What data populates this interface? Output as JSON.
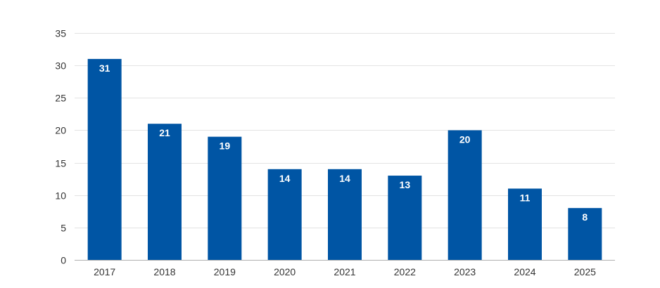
{
  "chart_data": {
    "type": "bar",
    "title": "",
    "xlabel": "",
    "ylabel": "",
    "categories": [
      "2017",
      "2018",
      "2019",
      "2020",
      "2021",
      "2022",
      "2023",
      "2024",
      "2025"
    ],
    "values": [
      31,
      21,
      19,
      14,
      14,
      13,
      20,
      11,
      8
    ],
    "ylim": [
      0,
      35
    ],
    "yticks": [
      0,
      5,
      10,
      15,
      20,
      25,
      30,
      35
    ],
    "grid": true,
    "legend": "none",
    "data_labels": true,
    "colors": {
      "bar": "#0055a4",
      "data_label": "#ffffff",
      "grid": "#e3e3e3",
      "tick_text": "#333333"
    }
  }
}
